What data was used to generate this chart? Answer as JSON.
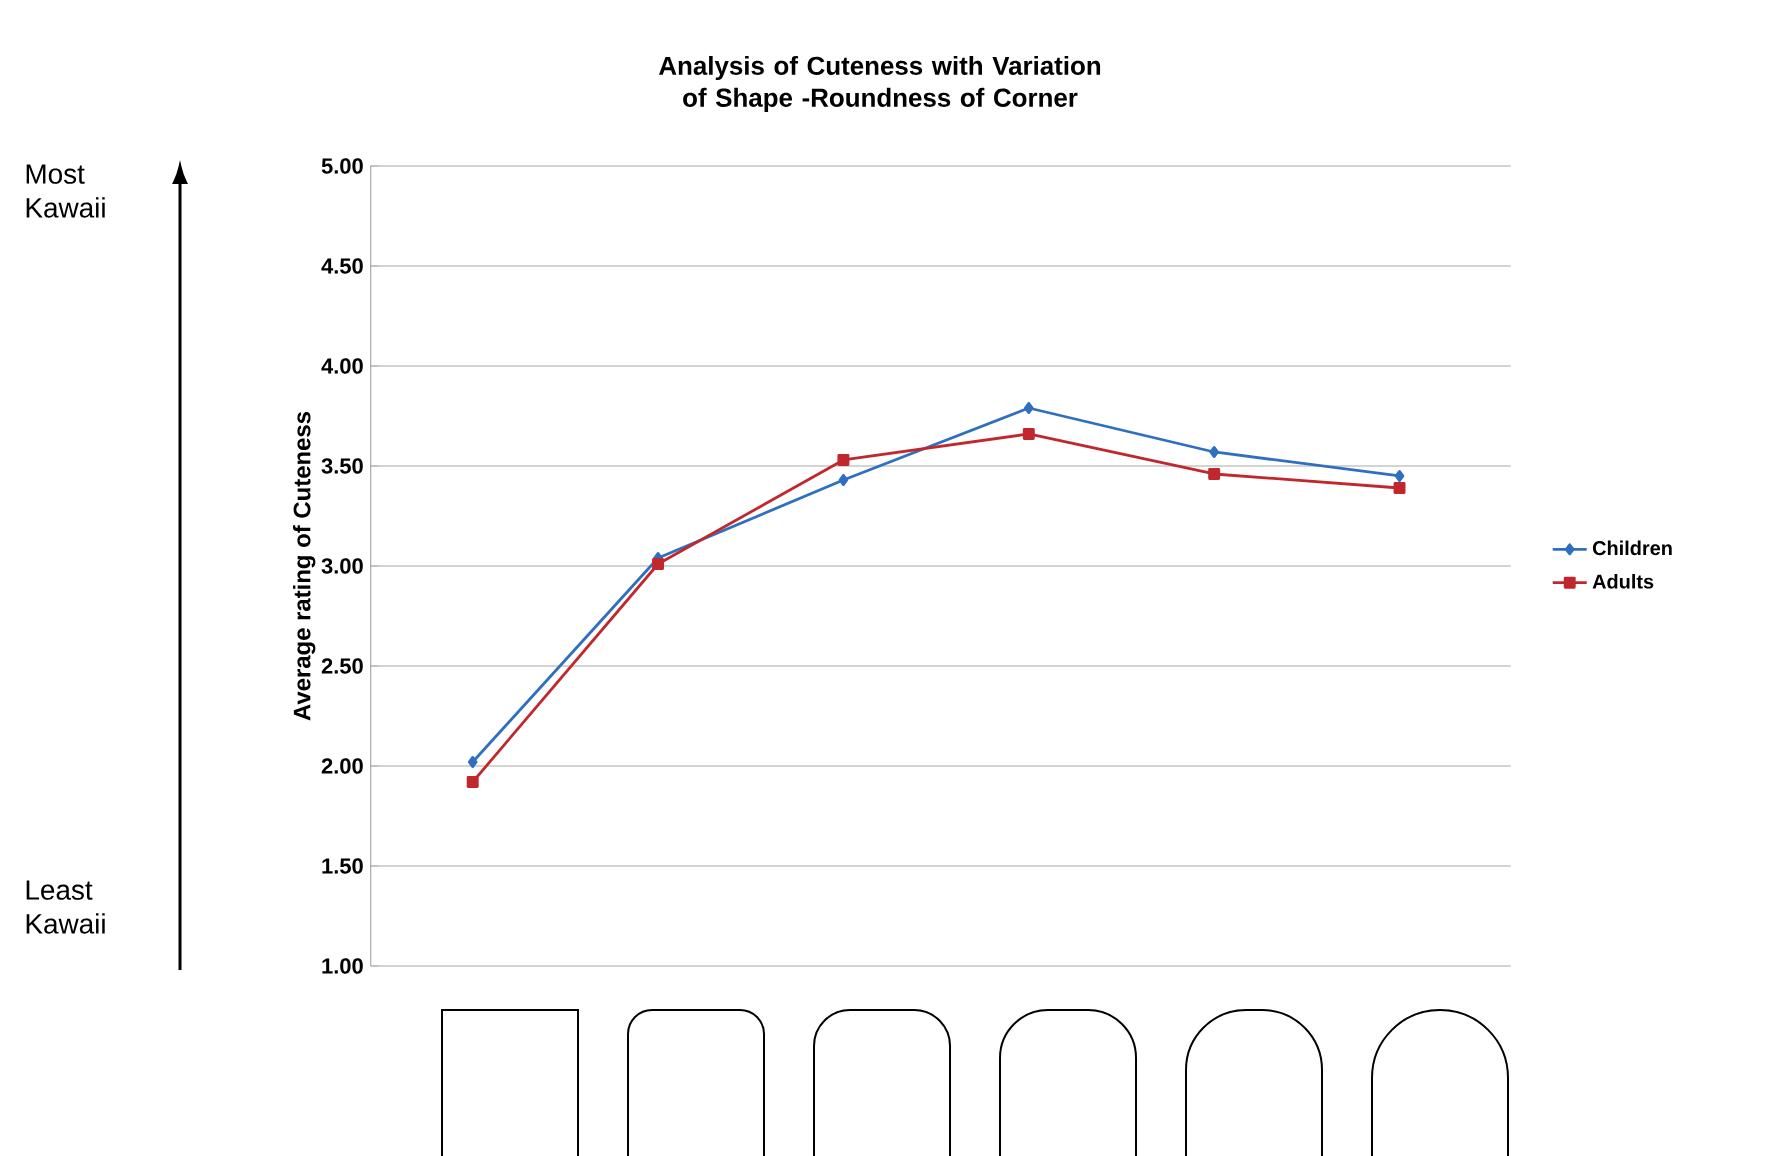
{
  "chart_data": {
    "type": "line",
    "title": "Analysis of Cuteness with Variation of Shape -Roundness of Corner",
    "ylabel": "Average rating of Cuteness",
    "annotations": [
      "Most Kawaii",
      "Least Kawaii"
    ],
    "categories": [
      null,
      null,
      null,
      null,
      null,
      null
    ],
    "series": [
      {
        "name": "Children",
        "color": "#2f6fc0",
        "marker": "diamond",
        "values": [
          2.02,
          3.04,
          3.43,
          3.79,
          3.57,
          3.45
        ]
      },
      {
        "name": "Adults",
        "color": "#c0282d",
        "marker": "square",
        "values": [
          1.92,
          3.01,
          3.53,
          3.66,
          3.46,
          3.39
        ]
      }
    ],
    "ylim": [
      1,
      5
    ],
    "yticks": [
      {
        "value": 1,
        "label": "1.00"
      },
      {
        "value": 1.5,
        "label": "1.50"
      },
      {
        "value": 2,
        "label": "2.00"
      },
      {
        "value": 2.5,
        "label": "2.50"
      },
      {
        "value": 3,
        "label": "3.00"
      },
      {
        "value": 3.5,
        "label": "3.50"
      },
      {
        "value": 4,
        "label": "4.00"
      },
      {
        "value": 4.5,
        "label": "4.50"
      },
      {
        "value": 5,
        "label": "5.00"
      }
    ],
    "grid": "y",
    "legend": "right",
    "tick_labels": "y",
    "line_style": "solid"
  }
}
